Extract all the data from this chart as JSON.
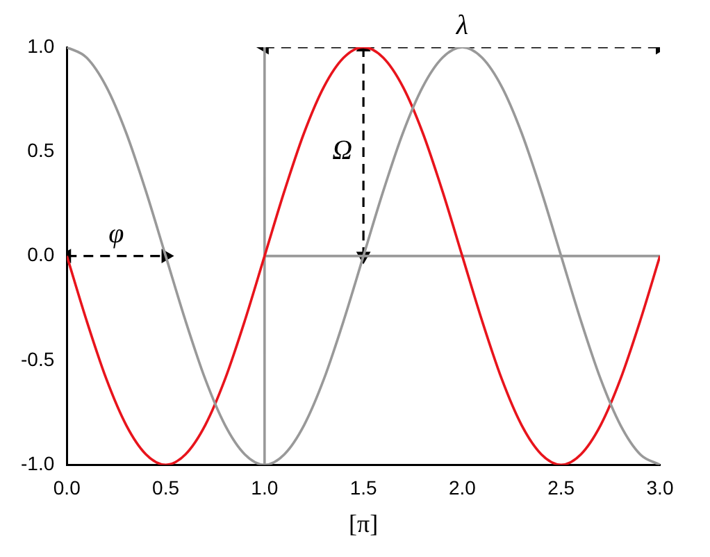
{
  "chart_data": {
    "type": "line",
    "xlabel": "[π]",
    "x": [
      0,
      0.1,
      0.2,
      0.3,
      0.4,
      0.5,
      0.6,
      0.7,
      0.8,
      0.9,
      1,
      1.1,
      1.2,
      1.3,
      1.4,
      1.5,
      1.6,
      1.7,
      1.8,
      1.9,
      2,
      2.1,
      2.2,
      2.3,
      2.4,
      2.5,
      2.6,
      2.7,
      2.8,
      2.9,
      3
    ],
    "series": [
      {
        "color": "#999999",
        "values": [
          1,
          0.95,
          0.81,
          0.59,
          0.31,
          0,
          -0.31,
          -0.59,
          -0.81,
          -0.95,
          -1,
          -0.95,
          -0.81,
          -0.59,
          -0.31,
          0,
          0.31,
          0.59,
          0.81,
          0.95,
          1,
          0.95,
          0.81,
          0.59,
          0.31,
          0,
          -0.31,
          -0.59,
          -0.81,
          -0.95,
          -1
        ]
      },
      {
        "color": "#e8141c",
        "values": [
          0,
          -0.31,
          -0.59,
          -0.81,
          -0.95,
          -1,
          -0.95,
          -0.81,
          -0.59,
          -0.31,
          0,
          0.31,
          0.59,
          0.81,
          0.95,
          1,
          0.95,
          0.81,
          0.59,
          0.31,
          0,
          -0.31,
          -0.59,
          -0.81,
          -0.95,
          -1,
          -0.95,
          -0.81,
          -0.59,
          -0.31,
          0
        ]
      },
      {
        "color": "#999999",
        "x": [
          1,
          1,
          1,
          3
        ],
        "values": [
          -1,
          1,
          0,
          0
        ]
      },
      {
        "color": "#000000",
        "line_style": "dashed",
        "marker": "triangle",
        "x": [
          0,
          0.5
        ],
        "values": [
          0,
          0
        ]
      },
      {
        "color": "#000000",
        "line_style": "dashed",
        "marker": "triangle",
        "x": [
          1.5,
          1.5
        ],
        "values": [
          1,
          0
        ]
      },
      {
        "color": "#000000",
        "line_style": "dashed",
        "marker": "triangle",
        "x": [
          1,
          3
        ],
        "values": [
          1,
          1
        ]
      }
    ],
    "annotations": [
      {
        "text": "φ",
        "x": 0.25,
        "y": 0
      },
      {
        "text": "Ω",
        "x": 1.5,
        "y": 0.5
      },
      {
        "text": "λ",
        "x": 2,
        "y": 1
      }
    ],
    "xlim": [
      0,
      3
    ],
    "xticks": [
      {
        "value": 0,
        "label": "0.0"
      },
      {
        "value": 0.5,
        "label": "0.5"
      },
      {
        "value": 1,
        "label": "1.0"
      },
      {
        "value": 1.5,
        "label": "1.5"
      },
      {
        "value": 2,
        "label": "2.0"
      },
      {
        "value": 2.5,
        "label": "2.5"
      },
      {
        "value": 3,
        "label": "3.0"
      }
    ],
    "ylim": [
      -1,
      1
    ],
    "yticks": [
      {
        "value": -1,
        "label": "-1.0"
      },
      {
        "value": -0.5,
        "label": "-0.5"
      },
      {
        "value": 0,
        "label": "0.0"
      },
      {
        "value": 0.5,
        "label": "0.5"
      },
      {
        "value": 1,
        "label": "1.0"
      }
    ],
    "grid": false,
    "legend": false,
    "marker": "none"
  }
}
